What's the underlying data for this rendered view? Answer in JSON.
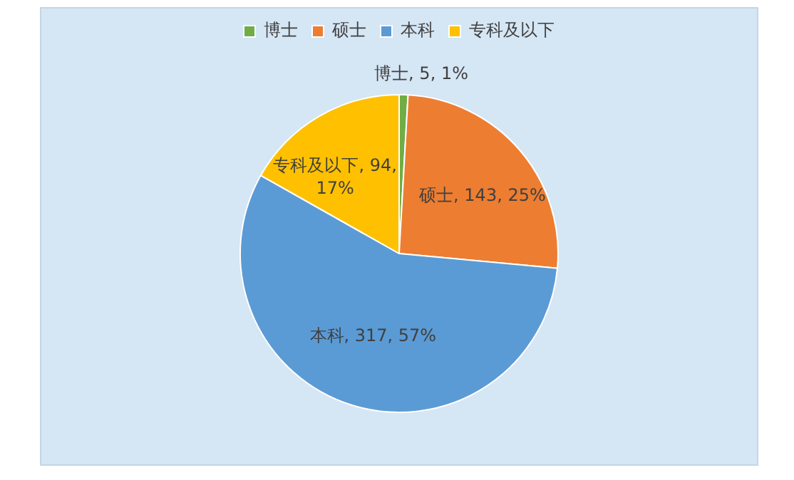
{
  "chart_data": {
    "type": "pie",
    "categories": [
      "博士",
      "硕士",
      "本科",
      "专科及以下"
    ],
    "values": [
      5,
      143,
      317,
      94
    ],
    "colors": [
      "#70ad47",
      "#ed7d31",
      "#5b9bd5",
      "#ffc000"
    ],
    "value_labels": [
      "博士, 5, 1%",
      "硕士, 143, 25%",
      "本科, 317, 57%",
      "专科及以下, 94, 17%"
    ],
    "legend": "top"
  }
}
